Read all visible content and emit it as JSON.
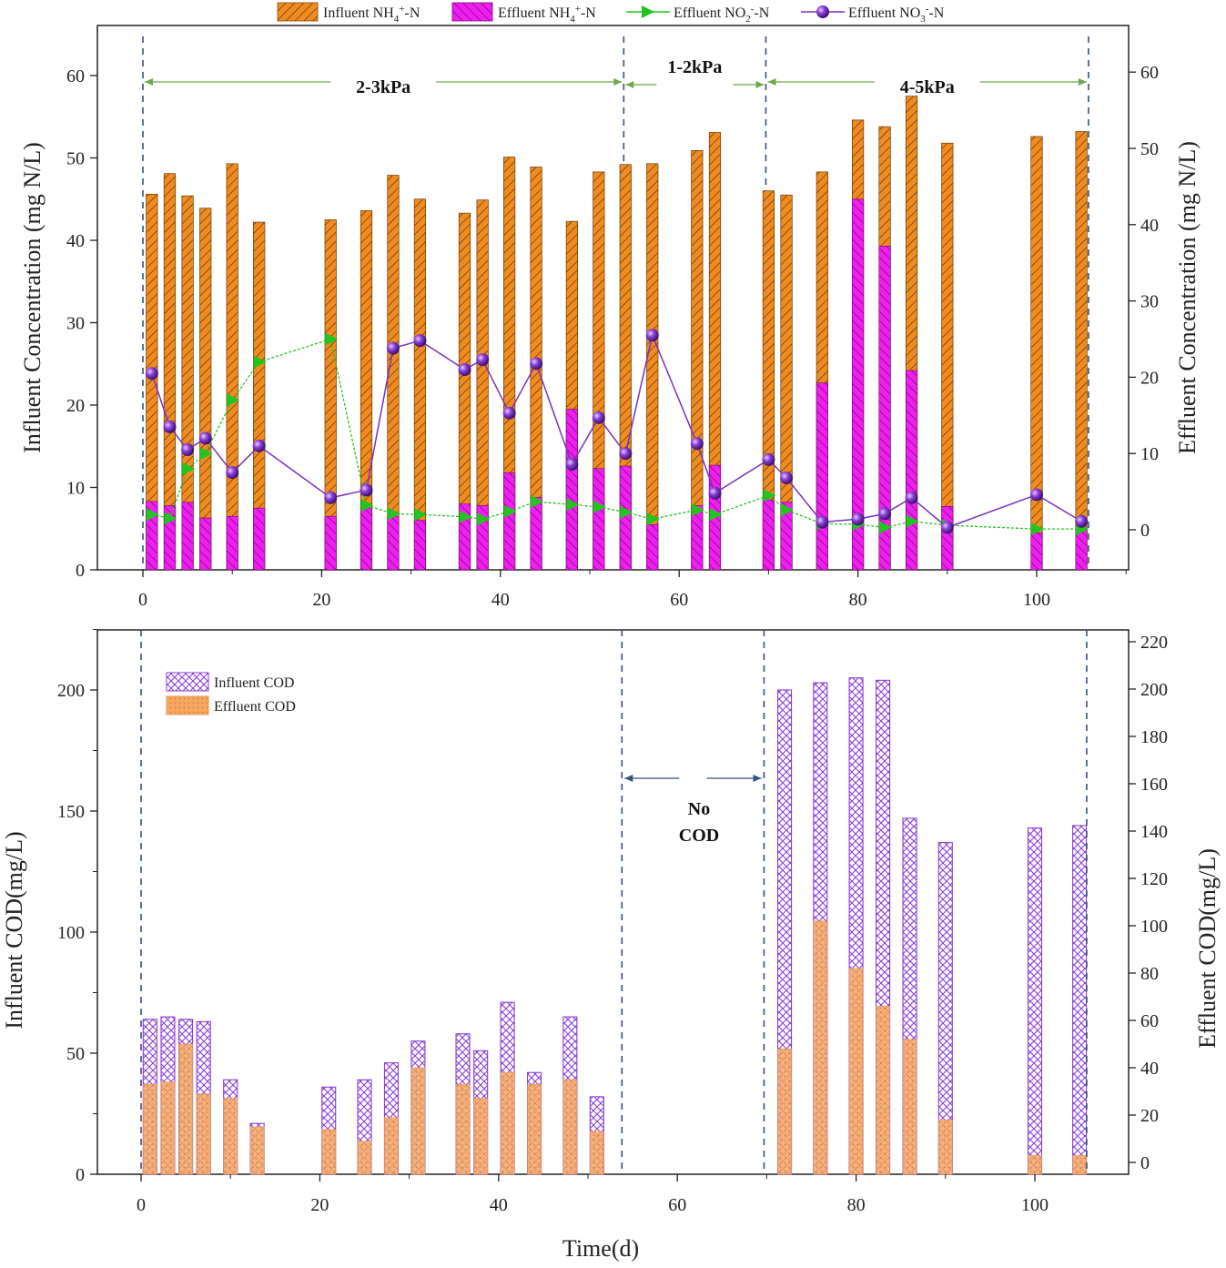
{
  "chart_data": [
    {
      "type": "bar",
      "ylabel": "Influent Concentration (mg N/L)",
      "y2label": "Effluent Concentration (mg N/L)",
      "xlim": [
        0,
        112
      ],
      "ylim": [
        0,
        65
      ],
      "y2lim": [
        -5,
        65
      ],
      "xticks": [
        0,
        20,
        40,
        60,
        80,
        100
      ],
      "yticks": [
        0,
        10,
        20,
        30,
        40,
        50,
        60
      ],
      "y2ticks": [
        0,
        10,
        20,
        30,
        40,
        50,
        60
      ],
      "legend_position": "top",
      "legend": [
        "Influent NH4+-N",
        "Effluent NH4+-N",
        "Effluent NO2--N",
        "Effluent NO3--N"
      ],
      "colors": {
        "influent": "#f28b1e",
        "effluent": "#f01ef0",
        "no2": "#22c51f",
        "no3": "#7b2fbf",
        "divider": "#34527a",
        "phase_arrow": "#6fa84c"
      },
      "series": [
        {
          "name": "Influent NH4+-N",
          "x": [
            1,
            3,
            5,
            7,
            10,
            13,
            21,
            25,
            28,
            31,
            36,
            38,
            41,
            44,
            48,
            51,
            54,
            57,
            62,
            64,
            70,
            72,
            76,
            80,
            83,
            86,
            90,
            100,
            105
          ],
          "values": [
            45.6,
            48.1,
            45.4,
            43.9,
            49.3,
            42.2,
            42.5,
            43.6,
            47.9,
            45.0,
            43.3,
            44.9,
            50.1,
            48.9,
            42.3,
            48.3,
            49.2,
            49.3,
            50.9,
            53.1,
            46.0,
            45.5,
            48.3,
            54.6,
            53.8,
            57.5,
            51.8,
            52.6,
            53.2
          ]
        },
        {
          "name": "Effluent NH4+-N",
          "x": [
            1,
            3,
            5,
            7,
            10,
            13,
            21,
            25,
            28,
            31,
            36,
            38,
            41,
            44,
            48,
            51,
            54,
            57,
            62,
            64,
            70,
            72,
            76,
            80,
            83,
            86,
            90,
            100,
            105
          ],
          "values": [
            8.3,
            7.8,
            8.2,
            6.3,
            6.5,
            7.5,
            6.5,
            7.5,
            6.5,
            6.0,
            8.0,
            7.8,
            11.8,
            8.8,
            19.5,
            12.3,
            12.6,
            5.5,
            7.8,
            12.7,
            8.5,
            8.2,
            22.7,
            45.0,
            39.3,
            24.2,
            7.7,
            4.5,
            5.0
          ]
        },
        {
          "name": "Effluent NO2--N",
          "x": [
            1,
            3,
            5,
            7,
            10,
            13,
            21,
            25,
            28,
            31,
            36,
            38,
            41,
            44,
            48,
            51,
            54,
            57,
            62,
            64,
            70,
            72,
            76,
            80,
            83,
            86,
            90,
            100,
            105
          ],
          "values": [
            2.0,
            1.5,
            8.0,
            10.0,
            17.0,
            22.0,
            25.0,
            3.2,
            2.1,
            2.0,
            1.7,
            1.4,
            2.4,
            3.7,
            3.3,
            3.0,
            2.3,
            1.4,
            2.6,
            2.0,
            4.5,
            2.6,
            0.8,
            0.7,
            0.3,
            1.1,
            0.6,
            0.1,
            0.1
          ]
        },
        {
          "name": "Effluent NO3--N",
          "x": [
            1,
            3,
            5,
            7,
            10,
            13,
            21,
            25,
            28,
            31,
            36,
            38,
            41,
            44,
            48,
            51,
            54,
            57,
            62,
            64,
            70,
            72,
            76,
            80,
            83,
            86,
            90,
            100,
            105
          ],
          "values": [
            20.5,
            13.5,
            10.5,
            12.0,
            7.5,
            11.0,
            4.2,
            5.2,
            23.8,
            24.8,
            21.0,
            22.3,
            15.3,
            21.8,
            8.6,
            14.7,
            10.0,
            25.5,
            11.3,
            4.8,
            9.2,
            6.8,
            1.0,
            1.4,
            2.1,
            4.2,
            0.3,
            4.6,
            1.1
          ]
        }
      ],
      "phases": [
        {
          "label": "2-3kPa",
          "start": 0,
          "end": 53.8
        },
        {
          "label": "1-2kPa",
          "start": 53.8,
          "end": 69.7
        },
        {
          "label": "4-5kPa",
          "start": 69.7,
          "end": 105.8
        }
      ]
    },
    {
      "type": "bar",
      "xlabel": "Time(d)",
      "ylabel": "Influent COD(mg/L)",
      "y2label": "Effluent COD(mg/L)",
      "xlim": [
        -5,
        110
      ],
      "ylim": [
        0,
        225
      ],
      "y2lim": [
        -5,
        225
      ],
      "xticks": [
        0,
        20,
        40,
        60,
        80,
        100
      ],
      "yticks": [
        0,
        50,
        100,
        150,
        200
      ],
      "y2ticks": [
        0,
        20,
        40,
        60,
        80,
        100,
        120,
        140,
        160,
        180,
        200,
        220
      ],
      "legend_position": "top-left",
      "legend": [
        "Influent COD",
        "Effluent COD"
      ],
      "colors": {
        "influent": "#8a3fd6",
        "effluent": "#f5a862",
        "divider": "#34527a",
        "phase_arrow": "#34527a"
      },
      "series": [
        {
          "name": "Influent COD",
          "x": [
            1,
            3,
            5,
            7,
            10,
            13,
            21,
            25,
            28,
            31,
            36,
            38,
            41,
            44,
            48,
            51,
            72,
            76,
            80,
            83,
            86,
            90,
            100,
            105
          ],
          "values": [
            64,
            65,
            64,
            63,
            39,
            21,
            36,
            39,
            46,
            55,
            58,
            51,
            71,
            42,
            65,
            32,
            200,
            203,
            205,
            204,
            147,
            137,
            143,
            144
          ]
        },
        {
          "name": "Effluent COD",
          "x": [
            1,
            3,
            5,
            7,
            10,
            13,
            21,
            25,
            28,
            31,
            36,
            38,
            41,
            44,
            48,
            51,
            72,
            76,
            80,
            83,
            86,
            90,
            100,
            105
          ],
          "values": [
            33,
            34,
            50,
            29,
            27,
            15,
            14,
            9,
            19,
            40,
            33,
            27,
            38,
            33,
            35,
            13,
            48,
            102,
            82,
            66,
            52,
            18,
            3,
            3
          ]
        }
      ],
      "annotation": [
        "No",
        "COD"
      ],
      "annotation_start": 53.8,
      "annotation_end": 69.7
    }
  ]
}
